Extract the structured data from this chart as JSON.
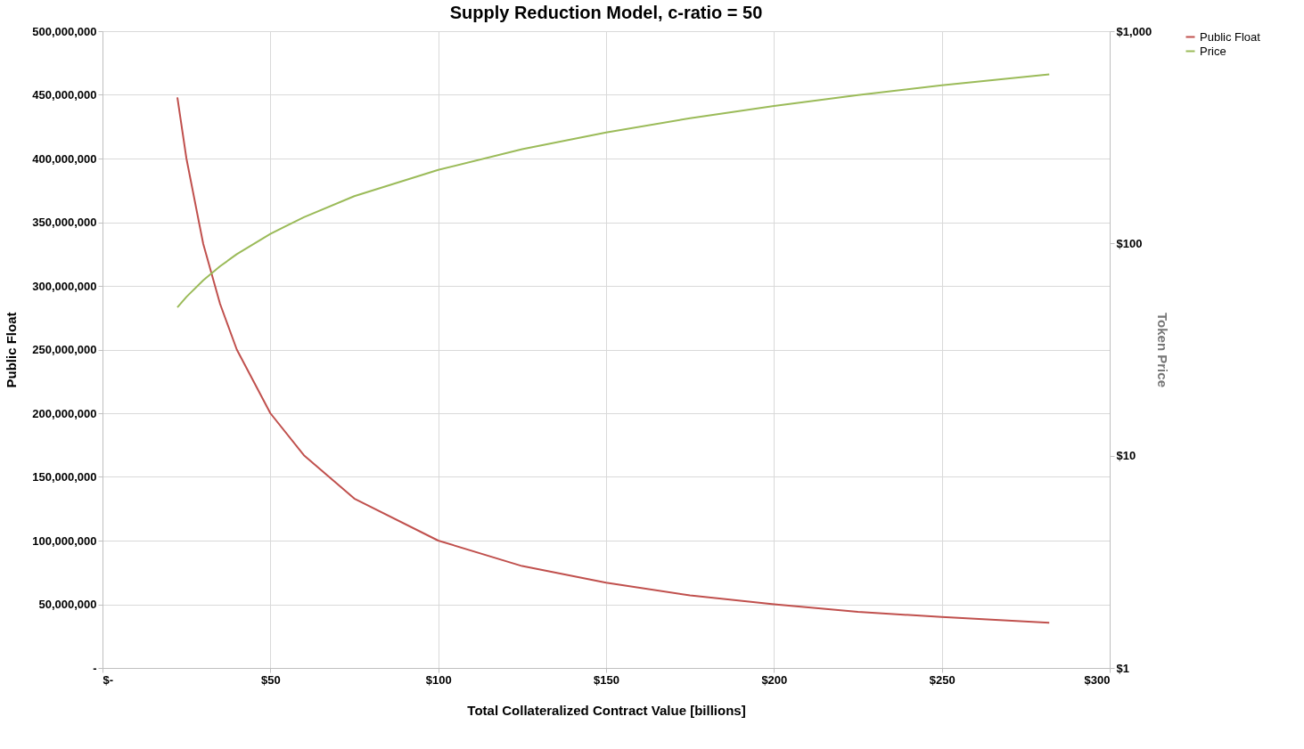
{
  "chart_data": {
    "type": "line",
    "title": "Supply Reduction Model, c-ratio = 50",
    "xlabel": "Total Collateralized Contract Value [billions]",
    "ylabel": "Public Float",
    "y2label": "Token Price",
    "x": [
      22.3,
      25,
      30,
      35,
      40,
      50,
      60,
      75,
      100,
      125,
      150,
      175,
      200,
      225,
      250,
      282
    ],
    "series": [
      {
        "name": "Public Float",
        "color": "#c0504d",
        "values": [
          448000000,
          400000000,
          333000000,
          286000000,
          250000000,
          200000000,
          167000000,
          133000000,
          100000000,
          80000000,
          67000000,
          57000000,
          50000000,
          44000000,
          40000000,
          35500000
        ]
      },
      {
        "name": "Price",
        "color": "#9bbb59",
        "axis": "y2",
        "values": [
          50,
          56,
          67,
          78,
          89,
          111,
          133,
          167,
          222,
          278,
          333,
          389,
          444,
          500,
          556,
          626
        ]
      }
    ],
    "xlim": [
      0,
      300
    ],
    "xticks": [
      {
        "value": 0,
        "label": "$-"
      },
      {
        "value": 50,
        "label": "$50"
      },
      {
        "value": 100,
        "label": "$100"
      },
      {
        "value": 150,
        "label": "$150"
      },
      {
        "value": 200,
        "label": "$200"
      },
      {
        "value": 250,
        "label": "$250"
      },
      {
        "value": 300,
        "label": "$300"
      }
    ],
    "ylim": [
      0,
      500000000
    ],
    "yticks": [
      {
        "value": 0,
        "label": "-"
      },
      {
        "value": 50000000,
        "label": "50,000,000"
      },
      {
        "value": 100000000,
        "label": "100,000,000"
      },
      {
        "value": 150000000,
        "label": "150,000,000"
      },
      {
        "value": 200000000,
        "label": "200,000,000"
      },
      {
        "value": 250000000,
        "label": "250,000,000"
      },
      {
        "value": 300000000,
        "label": "300,000,000"
      },
      {
        "value": 350000000,
        "label": "350,000,000"
      },
      {
        "value": 400000000,
        "label": "400,000,000"
      },
      {
        "value": 450000000,
        "label": "450,000,000"
      },
      {
        "value": 500000000,
        "label": "500,000,000"
      }
    ],
    "y2lim": [
      1,
      1000
    ],
    "y2ticks": [
      {
        "value": 1,
        "label": "$1"
      },
      {
        "value": 10,
        "label": "$10"
      },
      {
        "value": 100,
        "label": "$100"
      },
      {
        "value": 1000,
        "label": "$1,000"
      }
    ],
    "log": "y2",
    "grid": true,
    "legend": "right",
    "marker": "none",
    "line_style": "solid"
  }
}
